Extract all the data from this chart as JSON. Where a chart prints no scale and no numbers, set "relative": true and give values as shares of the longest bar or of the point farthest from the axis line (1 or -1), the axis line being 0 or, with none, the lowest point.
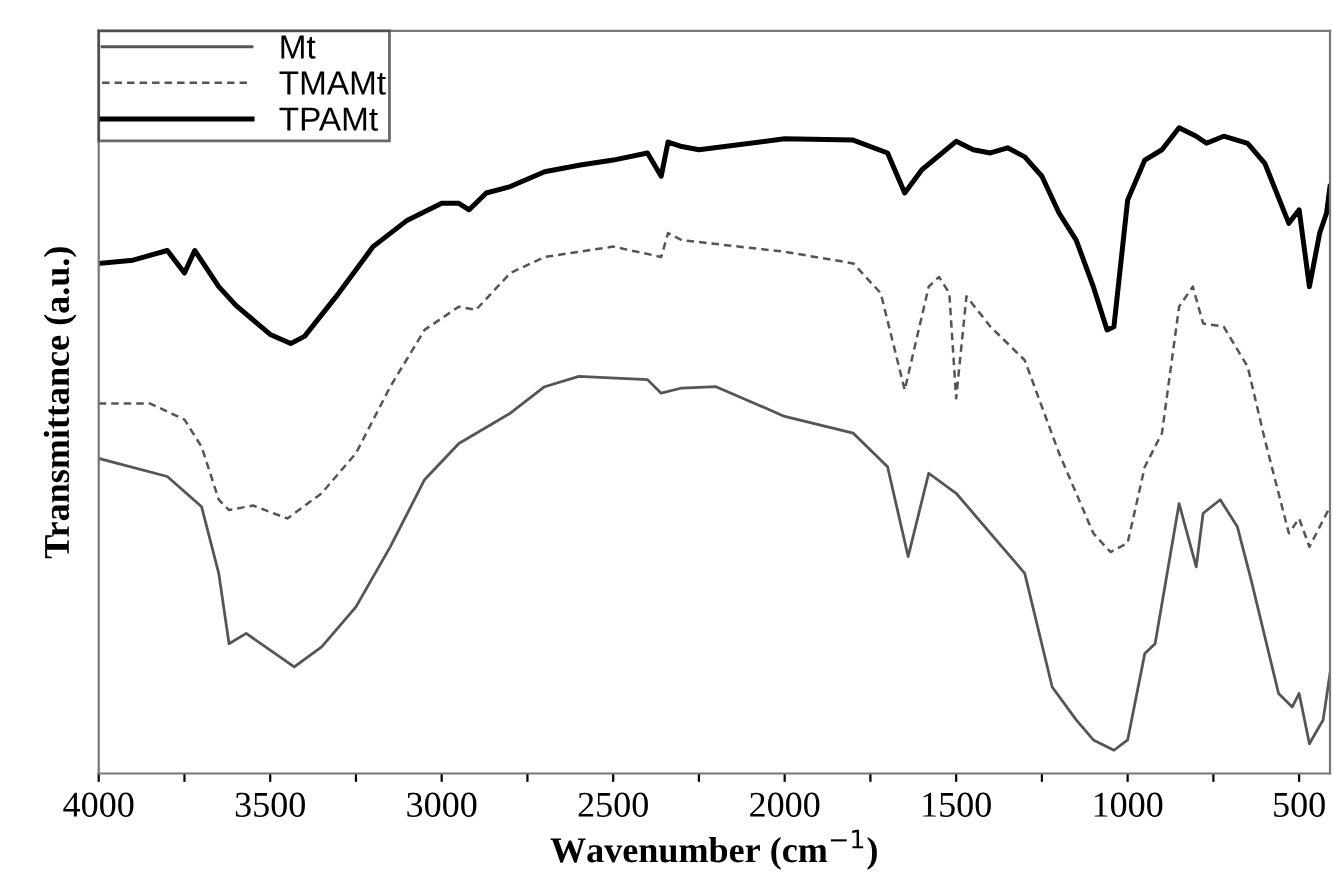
{
  "chart_data": {
    "type": "line",
    "relative": true,
    "xlabel": "Wavenumber (cm$^{−1}$)",
    "ylabel": "Transmittance (a.u.)",
    "xlim": [
      4000,
      410
    ],
    "xticks": [
      4000,
      {
        "value": 3750,
        "label": null
      },
      3500,
      {
        "value": 3250,
        "label": null
      },
      3000,
      {
        "value": 2750,
        "label": null
      },
      2500,
      {
        "value": 2250,
        "label": null
      },
      2000,
      {
        "value": 1750,
        "label": null
      },
      1500,
      {
        "value": 1250,
        "label": null
      },
      1000,
      {
        "value": 750,
        "label": null
      },
      500
    ],
    "tick_labels": "x",
    "grid": false,
    "legend": "top left",
    "series": [
      {
        "name": "Mt",
        "color": "#555555",
        "line_style": "solid",
        "x": [
          4000,
          3800,
          3700,
          3650,
          3620,
          3570,
          3500,
          3430,
          3350,
          3250,
          3150,
          3050,
          2950,
          2800,
          2700,
          2600,
          2400,
          2360,
          2300,
          2200,
          2000,
          1800,
          1700,
          1640,
          1580,
          1500,
          1400,
          1300,
          1220,
          1150,
          1100,
          1040,
          1000,
          950,
          920,
          850,
          800,
          780,
          730,
          680,
          640,
          560,
          520,
          500,
          470,
          430,
          410
        ],
        "values": [
          0.488,
          0.46,
          0.413,
          0.31,
          0.201,
          0.217,
          0.191,
          0.165,
          0.196,
          0.258,
          0.351,
          0.455,
          0.511,
          0.558,
          0.599,
          0.615,
          0.61,
          0.589,
          0.597,
          0.599,
          0.553,
          0.527,
          0.475,
          0.336,
          0.465,
          0.434,
          0.372,
          0.31,
          0.134,
          0.083,
          0.052,
          0.036,
          0.052,
          0.186,
          0.201,
          0.418,
          0.32,
          0.403,
          0.424,
          0.382,
          0.3,
          0.124,
          0.103,
          0.124,
          0.046,
          0.083,
          0.155
        ]
      },
      {
        "name": "TMAMt",
        "color": "#555555",
        "line_style": "dashed",
        "x": [
          4000,
          3850,
          3750,
          3700,
          3650,
          3620,
          3550,
          3450,
          3350,
          3250,
          3150,
          3050,
          2950,
          2900,
          2800,
          2700,
          2500,
          2360,
          2340,
          2300,
          2000,
          1800,
          1720,
          1650,
          1580,
          1550,
          1520,
          1500,
          1470,
          1400,
          1300,
          1200,
          1100,
          1050,
          1000,
          950,
          900,
          850,
          810,
          780,
          720,
          650,
          600,
          530,
          500,
          470,
          410
        ],
        "values": [
          0.573,
          0.573,
          0.548,
          0.506,
          0.424,
          0.408,
          0.415,
          0.395,
          0.434,
          0.496,
          0.599,
          0.687,
          0.723,
          0.718,
          0.775,
          0.8,
          0.816,
          0.8,
          0.837,
          0.826,
          0.808,
          0.79,
          0.744,
          0.594,
          0.754,
          0.769,
          0.744,
          0.581,
          0.739,
          0.692,
          0.64,
          0.496,
          0.372,
          0.343,
          0.357,
          0.475,
          0.527,
          0.723,
          0.754,
          0.697,
          0.692,
          0.63,
          0.517,
          0.372,
          0.395,
          0.351,
          0.413
        ]
      },
      {
        "name": "TPAMt",
        "color": "#000000",
        "line_style": "solid",
        "x": [
          4000,
          3900,
          3800,
          3750,
          3720,
          3650,
          3600,
          3500,
          3440,
          3400,
          3300,
          3200,
          3100,
          3000,
          2950,
          2920,
          2870,
          2800,
          2700,
          2600,
          2500,
          2400,
          2360,
          2340,
          2300,
          2250,
          2000,
          1800,
          1700,
          1650,
          1600,
          1500,
          1450,
          1400,
          1350,
          1300,
          1250,
          1200,
          1150,
          1100,
          1060,
          1040,
          1000,
          950,
          900,
          850,
          800,
          770,
          720,
          650,
          600,
          530,
          500,
          470,
          440,
          420,
          410
        ],
        "values": [
          0.79,
          0.795,
          0.81,
          0.775,
          0.81,
          0.754,
          0.725,
          0.68,
          0.666,
          0.677,
          0.744,
          0.816,
          0.857,
          0.883,
          0.883,
          0.873,
          0.899,
          0.909,
          0.932,
          0.942,
          0.95,
          0.961,
          0.925,
          0.978,
          0.971,
          0.966,
          0.983,
          0.981,
          0.961,
          0.899,
          0.935,
          0.979,
          0.966,
          0.961,
          0.969,
          0.955,
          0.925,
          0.868,
          0.826,
          0.754,
          0.687,
          0.692,
          0.888,
          0.95,
          0.966,
          1.0,
          0.987,
          0.976,
          0.987,
          0.976,
          0.945,
          0.852,
          0.873,
          0.754,
          0.837,
          0.868,
          0.909
        ]
      }
    ]
  }
}
